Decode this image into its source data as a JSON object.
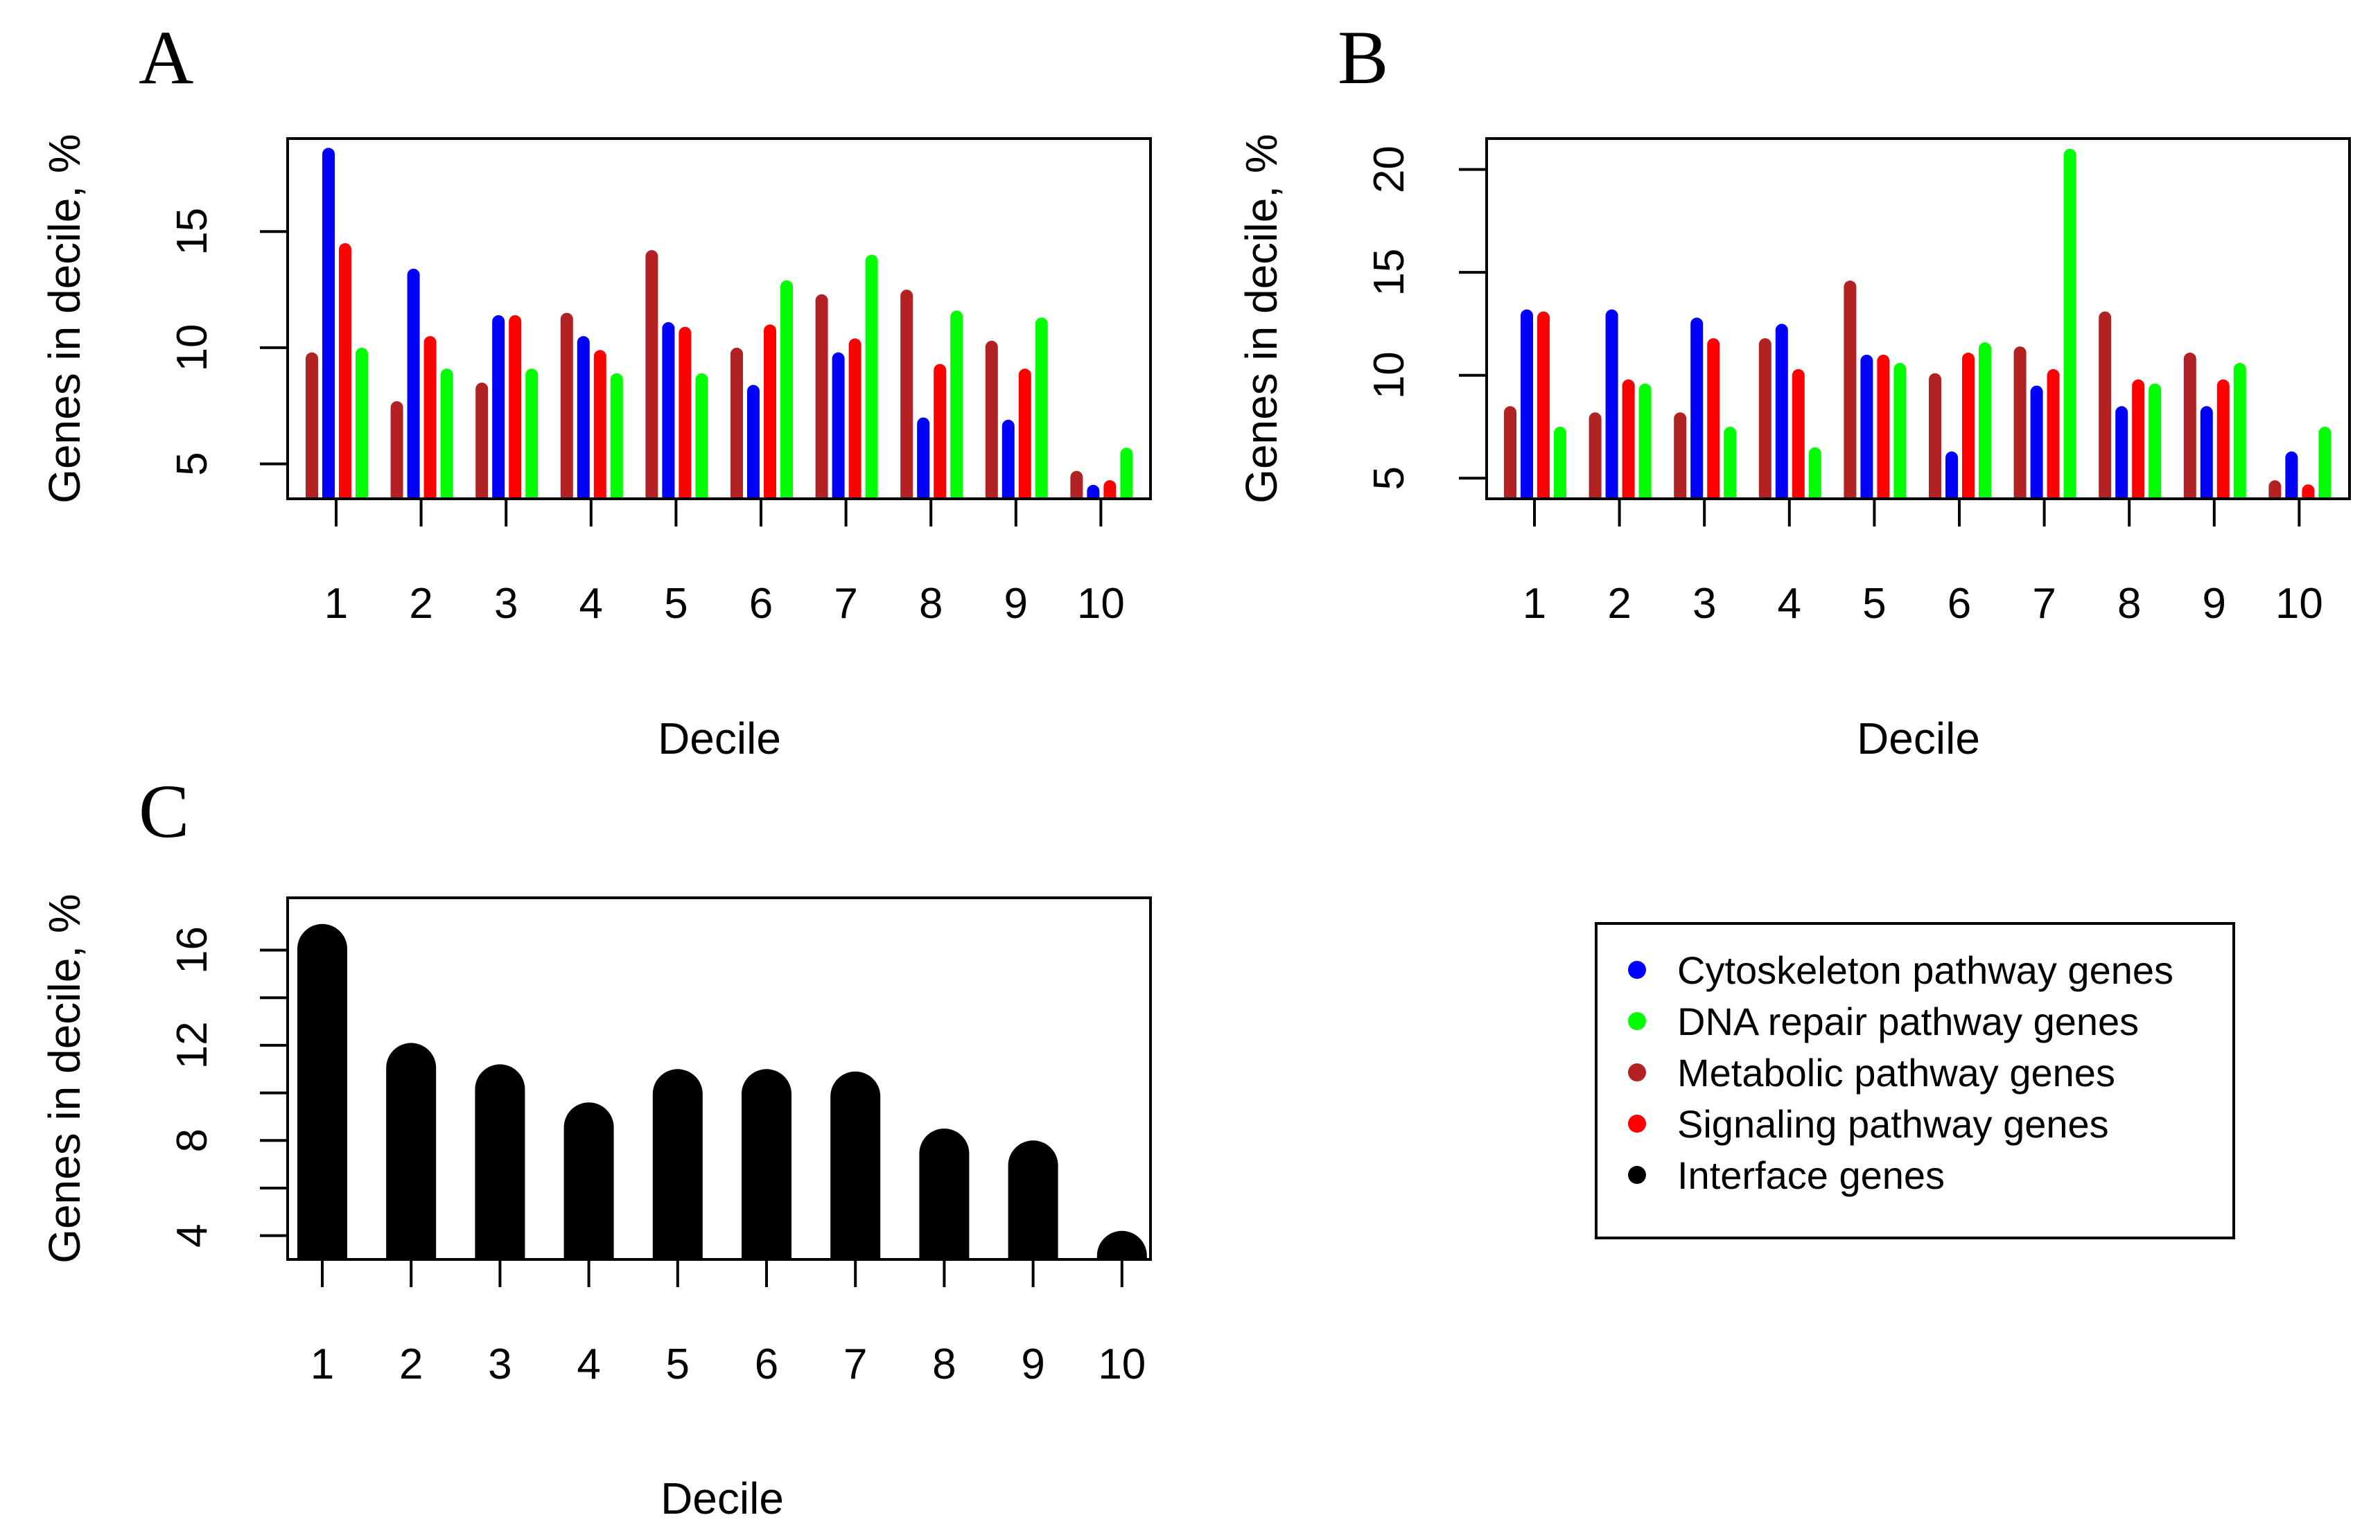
{
  "colors": {
    "Cytoskeleton": "#0000ff",
    "DNA": "#00ff00",
    "Metabolic": "#b22222",
    "Signaling": "#ff0000",
    "Interface": "#000000"
  },
  "legend": {
    "items": [
      {
        "label": "Cytoskeleton pathway genes",
        "color_key": "Cytoskeleton"
      },
      {
        "label": "DNA repair pathway genes",
        "color_key": "DNA"
      },
      {
        "label": "Metabolic pathway genes",
        "color_key": "Metabolic"
      },
      {
        "label": "Signaling pathway genes",
        "color_key": "Signaling"
      },
      {
        "label": "Interface genes",
        "color_key": "Interface"
      }
    ]
  },
  "chart_data": [
    {
      "panel": "A",
      "type": "bar",
      "xlabel": "Decile",
      "ylabel": "Genes in decile, %",
      "categories": [
        "1",
        "2",
        "3",
        "4",
        "5",
        "6",
        "7",
        "8",
        "9",
        "10"
      ],
      "ylim": [
        3.5,
        19.0
      ],
      "yticks": [
        5,
        10,
        15
      ],
      "series": [
        {
          "name": "Metabolic pathway genes",
          "color_key": "Metabolic",
          "values": [
            9.8,
            7.7,
            8.5,
            11.5,
            14.2,
            10.0,
            12.3,
            12.5,
            10.3,
            4.7
          ]
        },
        {
          "name": "Cytoskeleton pathway genes",
          "color_key": "Cytoskeleton",
          "values": [
            18.6,
            13.4,
            11.4,
            10.5,
            11.1,
            8.4,
            9.8,
            7.0,
            6.9,
            4.1
          ]
        },
        {
          "name": "Signaling pathway genes",
          "color_key": "Signaling",
          "values": [
            14.5,
            10.5,
            11.4,
            9.9,
            10.9,
            11.0,
            10.4,
            9.3,
            9.1,
            4.3
          ]
        },
        {
          "name": "DNA repair pathway genes",
          "color_key": "DNA",
          "values": [
            10.0,
            9.1,
            9.1,
            8.9,
            8.9,
            12.9,
            14.0,
            11.6,
            11.3,
            5.7
          ]
        }
      ]
    },
    {
      "panel": "B",
      "type": "bar",
      "xlabel": "Decile",
      "ylabel": "Genes in decile, %",
      "categories": [
        "1",
        "2",
        "3",
        "4",
        "5",
        "6",
        "7",
        "8",
        "9",
        "10"
      ],
      "ylim": [
        4.0,
        21.5
      ],
      "yticks": [
        5,
        10,
        15,
        20
      ],
      "series": [
        {
          "name": "Metabolic pathway genes",
          "color_key": "Metabolic",
          "values": [
            8.5,
            8.2,
            8.2,
            11.8,
            14.6,
            10.1,
            11.4,
            13.1,
            11.1,
            4.9
          ]
        },
        {
          "name": "Cytoskeleton pathway genes",
          "color_key": "Cytoskeleton",
          "values": [
            13.2,
            13.2,
            12.8,
            12.5,
            11.0,
            6.3,
            9.5,
            8.5,
            8.5,
            6.3
          ]
        },
        {
          "name": "Signaling pathway genes",
          "color_key": "Signaling",
          "values": [
            13.1,
            9.8,
            11.8,
            10.3,
            11.0,
            11.1,
            10.3,
            9.8,
            9.8,
            4.7
          ]
        },
        {
          "name": "DNA repair pathway genes",
          "color_key": "DNA",
          "values": [
            7.5,
            9.6,
            7.5,
            6.5,
            10.6,
            11.6,
            21.0,
            9.6,
            10.6,
            7.5
          ]
        }
      ]
    },
    {
      "panel": "C",
      "type": "bar",
      "xlabel": "Decile",
      "ylabel": "Genes in decile, %",
      "categories": [
        "1",
        "2",
        "3",
        "4",
        "5",
        "6",
        "7",
        "8",
        "9",
        "10"
      ],
      "ylim": [
        3.0,
        18.2
      ],
      "yticks": [
        4,
        8,
        12,
        16
      ],
      "series": [
        {
          "name": "Interface genes",
          "color_key": "Interface",
          "values": [
            17.1,
            12.1,
            11.2,
            9.6,
            11.0,
            11.0,
            10.9,
            8.5,
            8.0,
            4.2
          ]
        }
      ]
    }
  ]
}
